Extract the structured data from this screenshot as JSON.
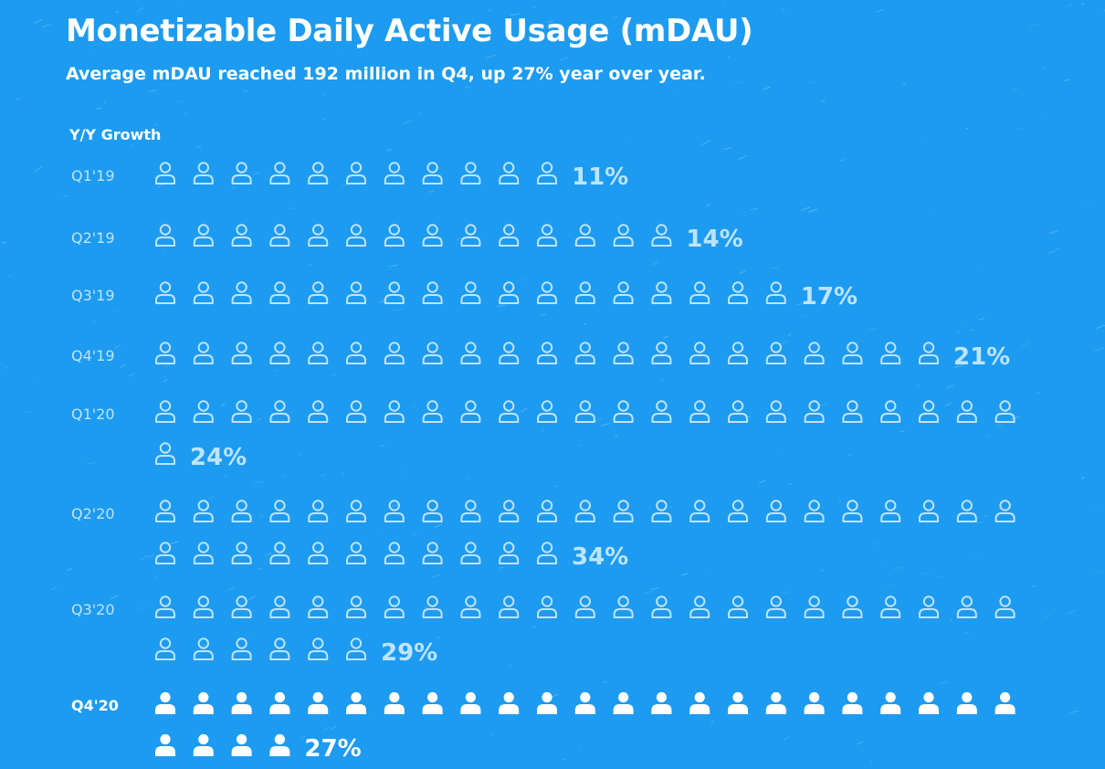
{
  "title": "Monetizable Daily Active Usage (mDAU)",
  "subtitle": "Average mDAU reached 192 million in Q4, up 27% year over year.",
  "section_label": "Y/Y Growth",
  "colors": {
    "background": "#1d9bf0",
    "icon_outline": "#bde4ff",
    "icon_highlight": "#ffffff",
    "label_muted": "#bde4ff",
    "label_highlight": "#ffffff"
  },
  "icons": {
    "unit": "person-icon",
    "unit_value": "1 icon = 1% Y/Y growth"
  },
  "chart_data": {
    "type": "pictograph",
    "title": "Monetizable Daily Active Usage (mDAU)",
    "subtitle": "Average mDAU reached 192 million in Q4, up 27% year over year.",
    "xlabel": "",
    "ylabel": "Y/Y Growth",
    "categories": [
      "Q1'19",
      "Q2'19",
      "Q3'19",
      "Q4'19",
      "Q1'20",
      "Q2'20",
      "Q3'20",
      "Q4'20"
    ],
    "values": [
      11,
      14,
      17,
      21,
      24,
      34,
      29,
      27
    ],
    "value_labels": [
      "11%",
      "14%",
      "17%",
      "21%",
      "24%",
      "34%",
      "29%",
      "27%"
    ],
    "highlighted_category": "Q4'20"
  }
}
